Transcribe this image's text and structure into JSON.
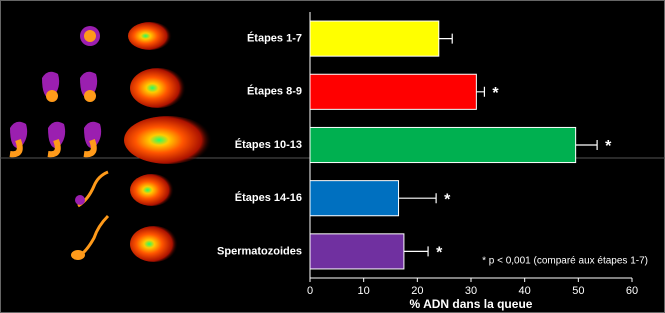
{
  "chart_data": {
    "type": "bar",
    "orientation": "horizontal",
    "categories": [
      "Étapes 1-7",
      "Étapes 8-9",
      "Étapes 10-13",
      "Étapes 14-16",
      "Spermatozoides"
    ],
    "values": [
      24,
      31,
      49.5,
      16.5,
      17.5
    ],
    "errors": [
      2.5,
      1.5,
      4,
      7,
      4.5
    ],
    "colors": [
      "#ffff00",
      "#ff0000",
      "#00b050",
      "#0070c0",
      "#7030a0"
    ],
    "significance": [
      null,
      "*",
      "*",
      "*",
      "*"
    ],
    "note": "* p < 0,001 (comparé aux étapes 1-7)",
    "xlabel": "% ADN dans la queue",
    "xlim": [
      0,
      60
    ],
    "xticks": [
      0,
      10,
      20,
      30,
      40,
      50,
      60
    ]
  }
}
